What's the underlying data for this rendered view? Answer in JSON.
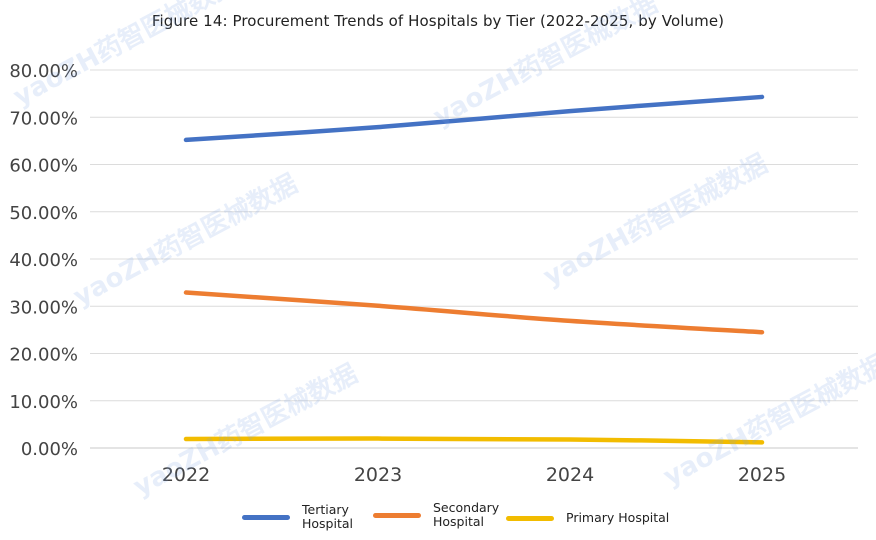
{
  "chart_data": {
    "type": "line",
    "title": "Figure 14: Procurement Trends of Hospitals by Tier (2022-2025, by Volume)",
    "xlabel": "",
    "ylabel": "",
    "categories": [
      "2022",
      "2023",
      "2024",
      "2025"
    ],
    "ylim": [
      0,
      0.8
    ],
    "yticks": [
      0,
      0.1,
      0.2,
      0.3,
      0.4,
      0.5,
      0.6,
      0.7,
      0.8
    ],
    "ytick_labels": [
      "0.00%",
      "10.00%",
      "20.00%",
      "30.00%",
      "40.00%",
      "50.00%",
      "60.00%",
      "70.00%",
      "80.00%"
    ],
    "grid": "horizontal",
    "legend_position": "bottom",
    "series": [
      {
        "name": "Tertiary Hospital",
        "label_lines": [
          "Tertiary",
          "Hospital"
        ],
        "color": "#4472C4",
        "values": [
          0.652,
          0.679,
          0.713,
          0.743
        ]
      },
      {
        "name": "Secondary Hospital",
        "label_lines": [
          "Secondary",
          "Hospital"
        ],
        "color": "#ED7D31",
        "values": [
          0.329,
          0.301,
          0.269,
          0.245
        ]
      },
      {
        "name": "Primary Hospital",
        "label_lines": [
          "Primary Hospital"
        ],
        "color": "#F2BC00",
        "values": [
          0.019,
          0.02,
          0.018,
          0.012
        ]
      }
    ]
  },
  "watermark_text": "yaoZH药智医械数据"
}
